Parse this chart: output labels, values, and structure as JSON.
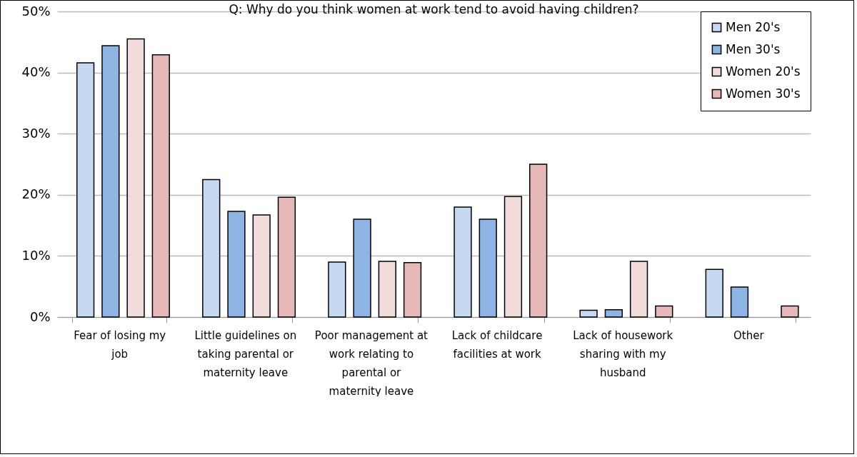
{
  "chart_data": {
    "type": "bar",
    "title": "Q: Why do you think women at work tend to avoid having children?",
    "categories": [
      "Fear of losing my job",
      "Little guidelines on taking parental or maternity leave",
      "Poor management at work relating to parental or maternity leave",
      "Lack of childcare facilities at work",
      "Lack of housework sharing with my husband",
      "Other"
    ],
    "series": [
      {
        "name": "Men 20's",
        "color": "#c6d9f1",
        "values": [
          41.6,
          22.5,
          9.0,
          18.0,
          1.1,
          7.8
        ]
      },
      {
        "name": "Men 30's",
        "color": "#8db4e2",
        "values": [
          44.4,
          17.3,
          16.0,
          16.0,
          1.2,
          4.9
        ]
      },
      {
        "name": "Women 20's",
        "color": "#f2dcdb",
        "values": [
          45.5,
          16.7,
          9.1,
          19.7,
          9.1,
          null
        ]
      },
      {
        "name": "Women 30's",
        "color": "#e6b9b8",
        "values": [
          42.9,
          19.6,
          8.9,
          25.0,
          1.8,
          1.8
        ]
      }
    ],
    "ylim": [
      0,
      50
    ],
    "yticks": [
      {
        "value": 0,
        "label": "0%"
      },
      {
        "value": 10,
        "label": "10%"
      },
      {
        "value": 20,
        "label": "20%"
      },
      {
        "value": 30,
        "label": "30%"
      },
      {
        "value": 40,
        "label": "40%"
      },
      {
        "value": 50,
        "label": "50%"
      }
    ],
    "grid": "y",
    "legend": "top right"
  }
}
